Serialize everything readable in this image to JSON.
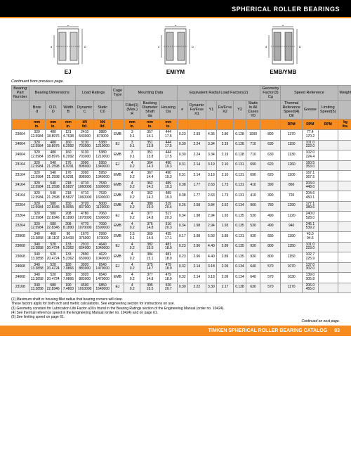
{
  "header": {
    "title": "SPHERICAL ROLLER BEARINGS"
  },
  "diagrams": [
    {
      "label": "EJ"
    },
    {
      "label": "EM/YM"
    },
    {
      "label": "EMB/YMB"
    }
  ],
  "continued": "Continued from previous page.",
  "colgroups": [
    {
      "label": "Bearing Part Number",
      "span": 1
    },
    {
      "label": "Bearing Dimensions",
      "span": 3
    },
    {
      "label": "Load Ratings",
      "span": 2
    },
    {
      "label": "Cage Type",
      "span": 1
    },
    {
      "label": "Mounting Data",
      "span": 3
    },
    {
      "label": "Equivalent Radial Load Factors(2)",
      "span": 6
    },
    {
      "label": "Geometry Factor(3)\nCg",
      "span": 1
    },
    {
      "label": "Speed Reference",
      "span": 3
    },
    {
      "label": "Weight",
      "span": 1
    }
  ],
  "subcols": [
    "",
    "Bore\nd",
    "O.D.\nD",
    "Width\nB",
    "Dynamic\nC",
    "Static\nC0",
    "",
    "Fillet(1)\n(Max.)\nR",
    "Backing\nDiameter\nShaft\nda",
    "Housing\nDa",
    "e",
    "Dynamic\nFa/Fr≤e\nX1",
    "Y1",
    "Fa/Fr>e\nX2",
    "Y2",
    "Static\nIn All Cases\nY0",
    "",
    "Thermal Reference Speed(4)\nOil",
    "Grease",
    "Limiting Speed(5)",
    ""
  ],
  "unit_row": [
    "",
    "mm\nin.",
    "mm\nin.",
    "mm\nin.",
    "kN\nlbf.",
    "kN\nlbf.",
    "",
    "mm\nin.",
    "mm\nin.",
    "mm\nin.",
    "",
    "",
    "",
    "",
    "",
    "",
    "",
    "RPM",
    "RPM",
    "RPM",
    "kg\nlbs."
  ],
  "rows": [
    {
      "pn": "23064",
      "vals": [
        "320\n12.5984",
        "480\n18.8976",
        "121\n4.7638",
        "2410\n543000",
        "3880\n873000",
        "EMB",
        "3\n0.1",
        "357\n14.1",
        "444\n17.5",
        "0.23",
        "2.93",
        "4.36",
        "2.86",
        "0.128",
        "1000",
        "890",
        "1370",
        "77.4\n170.2"
      ]
    },
    {
      "pn": "24064",
      "vals": [
        "320\n12.5984",
        "480\n18.8976",
        "160\n6.2992",
        "3130\n703000",
        "5380\n1210000",
        "EJ",
        "3\n0.1",
        "351\n13.8",
        "444\n17.5",
        "0.30",
        "2.24",
        "3.34",
        "2.19",
        "0.128",
        "710",
        "630",
        "1150",
        "101.0\n222.0"
      ]
    },
    {
      "pn": "24064",
      "vals": [
        "320\n12.5984",
        "480\n18.8976",
        "160\n6.2992",
        "3130\n703000",
        "5380\n1210000",
        "EMB",
        "3\n0.1",
        "351\n13.8",
        "444\n17.5",
        "0.30",
        "2.24",
        "3.34",
        "2.19",
        "0.128",
        "710",
        "630",
        "1130",
        "102.0\n224.4"
      ]
    },
    {
      "pn": "23164",
      "vals": [
        "320\n12.5984",
        "540\n21.2598",
        "176\n6.9291",
        "3990\n898000",
        "5950\n1340000",
        "EJ",
        "4\n0.2",
        "364\n14.3",
        "490\n19.3",
        "0.31",
        "2.14",
        "3.19",
        "2.10",
        "0.131",
        "690",
        "620",
        "1260",
        "160.5\n353.0"
      ]
    },
    {
      "pn": "23164",
      "vals": [
        "320\n12.5984",
        "540\n21.2598",
        "176\n6.9291",
        "3990\n898000",
        "5950\n1340000",
        "EMB",
        "4\n0.2",
        "367\n14.4",
        "490\n19.3",
        "0.31",
        "2.14",
        "3.19",
        "2.10",
        "0.131",
        "690",
        "620",
        "1100",
        "167.1\n367.5"
      ]
    },
    {
      "pn": "24164",
      "vals": [
        "320\n12.5984",
        "540\n21.2598",
        "218\n8.5827",
        "4710\n1060000",
        "7530\n1690000",
        "EMB",
        "4\n0.2",
        "362\n14.2",
        "489\n19.3",
        "0.38",
        "1.77",
        "2.63",
        "1.73",
        "0.131",
        "410",
        "390",
        "860",
        "203.0\n448.0"
      ]
    },
    {
      "pn": "24164",
      "vals": [
        "320\n12.5984",
        "540\n21.2598",
        "218\n8.5827",
        "4710\n1060000",
        "7530\n1690000",
        "EMB",
        "4\n0.2",
        "362\n14.2",
        "489\n19.3",
        "0.38",
        "1.77",
        "2.63",
        "1.73",
        "0.131",
        "410",
        "390",
        "720",
        "204.6\n450.1"
      ]
    },
    {
      "pn": "22264",
      "vals": [
        "320\n12.5984",
        "580\n22.8346",
        "150\n5.9055",
        "3720\n837000",
        "5000\n1120000",
        "EMB",
        "4\n0.2",
        "380\n15.0",
        "519\n20.4",
        "0.26",
        "2.58",
        "3.84",
        "2.52",
        "0.134",
        "900",
        "780",
        "1290",
        "177.1\n389.6"
      ]
    },
    {
      "pn": "23264",
      "vals": [
        "320\n12.5984",
        "580\n22.8346",
        "208\n8.1890",
        "4780\n1070000",
        "7060\n1590000",
        "EJ",
        "4\n0.2",
        "377\n14.8",
        "517\n20.3",
        "0.34",
        "1.98",
        "2.94",
        "1.93",
        "0.135",
        "530",
        "490",
        "1220",
        "240.0\n528.0"
      ]
    },
    {
      "pn": "23264",
      "vals": [
        "320\n12.5984",
        "580\n22.8346",
        "208\n8.1890",
        "4770\n1070000",
        "7090\n1590000",
        "EMB",
        "4\n0.2",
        "376\n14.8",
        "516\n20.3",
        "0.34",
        "1.98",
        "2.94",
        "1.93",
        "0.135",
        "530",
        "490",
        "940",
        "245.1\n539.2"
      ]
    },
    {
      "pn": "23968",
      "vals": [
        "340\n13.3858",
        "460\n18.1102",
        "90\n3.5433",
        "1670\n376000",
        "2990\n673000",
        "EMB",
        "2.5\n0.1",
        "369\n14.5",
        "435\n17.1",
        "0.17",
        "3.98",
        "5.93",
        "3.89",
        "0.131",
        "930",
        "830",
        "1390",
        "43.0\n94.6"
      ]
    },
    {
      "pn": "23068",
      "vals": [
        "340\n13.3858",
        "520\n20.4724",
        "133\n5.2362",
        "2910\n654000",
        "4640\n1040000",
        "EJ",
        "4\n0.2",
        "382\n15.0",
        "481\n18.9",
        "0.23",
        "2.96",
        "4.40",
        "2.89",
        "0.135",
        "930",
        "800",
        "1350",
        "101.0\n223.0"
      ]
    },
    {
      "pn": "23068",
      "vals": [
        "340\n13.3858",
        "520\n20.4724",
        "133\n5.2362",
        "2890\n650000",
        "4620\n1040000",
        "EMB",
        "4\n0.2",
        "384\n15.1",
        "481\n18.9",
        "0.23",
        "2.96",
        "4.40",
        "2.89",
        "0.135",
        "930",
        "800",
        "1150",
        "102.7\n225.9"
      ]
    },
    {
      "pn": "24068",
      "vals": [
        "340\n13.3858",
        "520\n20.4724",
        "180\n7.0866",
        "3920\n883000",
        "6540\n1470000",
        "EJ",
        "4\n0.2",
        "375\n14.7",
        "479\n18.9",
        "0.32",
        "2.14",
        "3.18",
        "2.09",
        "0.134",
        "640",
        "570",
        "1070",
        "137.0\n302.0"
      ]
    },
    {
      "pn": "24068",
      "vals": [
        "340\n13.3858",
        "520\n20.4724",
        "180\n7.0866",
        "3920\n883000",
        "6540\n1470000",
        "EMB",
        "4\n0.2",
        "377\n14.8",
        "479\n18.9",
        "0.32",
        "2.14",
        "3.18",
        "2.09",
        "0.134",
        "640",
        "570",
        "1030",
        "139.0\n305.8"
      ]
    },
    {
      "pn": "23168",
      "vals": [
        "340\n13.3858",
        "580\n22.8346",
        "190\n7.4803",
        "4500\n1010000",
        "6850\n1540000",
        "EJ",
        "4\n0.2",
        "395\n15.5",
        "526\n20.7",
        "0.30",
        "2.22",
        "3.30",
        "2.17",
        "0.138",
        "630",
        "570",
        "1170",
        "206.0\n455.0"
      ]
    }
  ],
  "footnotes": [
    "(1) Maximum shaft or housing fillet radius that bearing corners will clear.",
    "These factors apply for both inch and metric calculations. See engineering section for instructions on use.",
    "(3) Geometry constant for Lubrication Life Factor a3l is found in the Bearing Ratings section of the Engineering Manual (order no. 10424).",
    "(4) See thermal reference speed in the Engineering Manual (order no. 10424) and on page 61.",
    "(5) See limiting speed on page 61."
  ],
  "nextpage": "Continued on next page.",
  "footer": {
    "text": "TIMKEN SPHERICAL ROLLER BEARING CATALOG",
    "page": "83"
  }
}
